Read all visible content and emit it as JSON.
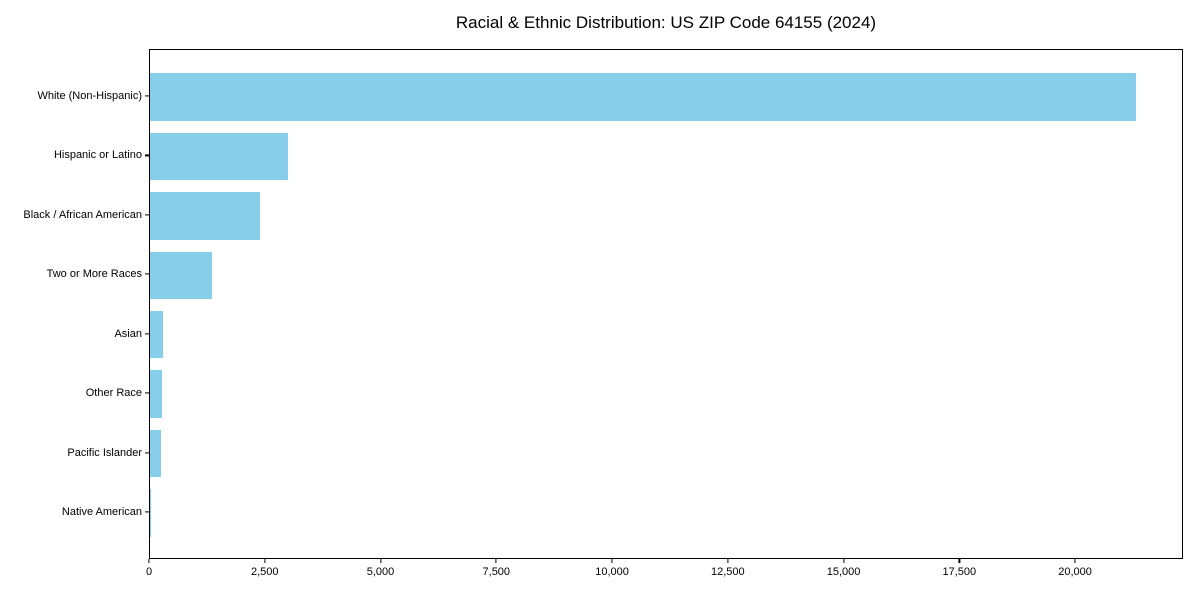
{
  "title": "Racial & Ethnic Distribution: US ZIP Code 64155 (2024)",
  "chart_data": {
    "type": "bar",
    "orientation": "horizontal",
    "title": "Racial & Ethnic Distribution: US ZIP Code 64155 (2024)",
    "xlabel": "",
    "ylabel": "",
    "categories": [
      "White (Non-Hispanic)",
      "Hispanic or Latino",
      "Black / African American",
      "Two or More Races",
      "Asian",
      "Other Race",
      "Pacific Islander",
      "Native American"
    ],
    "values": [
      21300,
      2980,
      2380,
      1340,
      280,
      260,
      240,
      15
    ],
    "xlim": [
      0,
      22330
    ],
    "x_ticks": [
      0,
      2500,
      5000,
      7500,
      10000,
      12500,
      15000,
      17500,
      20000
    ],
    "x_tick_labels": [
      "0",
      "2,500",
      "5,000",
      "7,500",
      "10,000",
      "12,500",
      "15,000",
      "17,500",
      "20,000"
    ],
    "bar_color": "#87CEEB",
    "grid": false,
    "legend": "none"
  }
}
